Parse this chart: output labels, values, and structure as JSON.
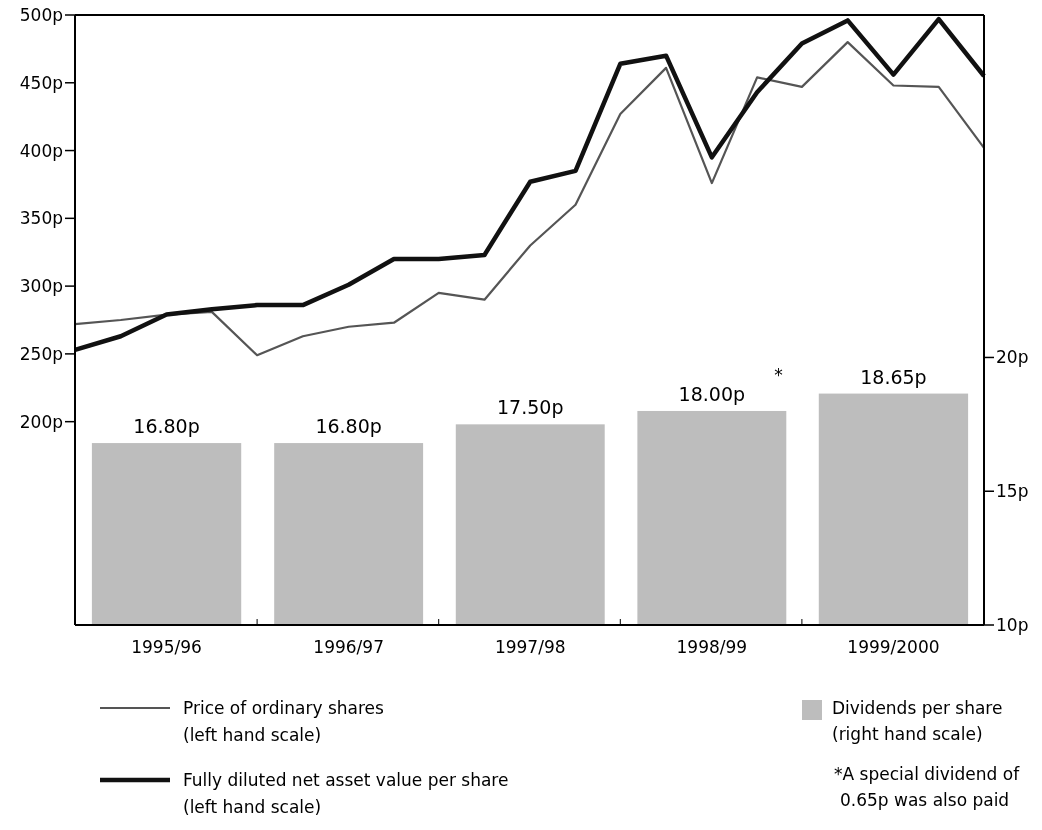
{
  "chart_data": {
    "type": "line",
    "xlim": [
      "1995-03",
      "2000-03"
    ],
    "xticks": [
      {
        "value": "1995-03",
        "label": null
      },
      {
        "value": "1995-09",
        "label": "1995/96"
      },
      {
        "value": "1996-03",
        "label": null
      },
      {
        "value": "1996-09",
        "label": "1996/97"
      },
      {
        "value": "1997-03",
        "label": null
      },
      {
        "value": "1997-09",
        "label": "1997/98"
      },
      {
        "value": "1998-03",
        "label": null
      },
      {
        "value": "1998-09",
        "label": "1998/99"
      },
      {
        "value": "1999-03",
        "label": null
      },
      {
        "value": "1999-09",
        "label": "1999/2000"
      },
      {
        "value": "2000-03",
        "label": null
      }
    ],
    "ylim": [
      50,
      500
    ],
    "yticks": [
      {
        "value": 200,
        "label": "200p"
      },
      {
        "value": 250,
        "label": "250p"
      },
      {
        "value": 300,
        "label": "300p"
      },
      {
        "value": 350,
        "label": "350p"
      },
      {
        "value": 400,
        "label": "400p"
      },
      {
        "value": 450,
        "label": "450p"
      },
      {
        "value": 500,
        "label": "500p"
      }
    ],
    "y2lim": [
      10,
      32.8
    ],
    "y2ticks": [
      {
        "value": 10,
        "label": "10p"
      },
      {
        "value": 15,
        "label": "15p"
      },
      {
        "value": 20,
        "label": "20p"
      }
    ],
    "series": [
      {
        "name": "Dividends per share (right hand scale)",
        "type": "bar",
        "axis": "y2",
        "color": "#bdbdbd",
        "x": [
          "1995-09",
          "1996-09",
          "1997-09",
          "1998-09",
          "1999-09"
        ],
        "values": [
          16.8,
          16.8,
          17.5,
          18.0,
          18.65
        ],
        "value_labels": [
          "16.80p",
          "16.80p",
          "17.50p",
          "18.00p",
          "18.65p"
        ]
      },
      {
        "name": "Price of ordinary shares (left hand scale)",
        "color": "#555555",
        "x": [
          "1995-03",
          "1995-06",
          "1995-09",
          "1995-12",
          "1996-03",
          "1996-06",
          "1996-09",
          "1996-12",
          "1997-03",
          "1997-06",
          "1997-09",
          "1997-12",
          "1998-03",
          "1998-06",
          "1998-09",
          "1998-12",
          "1999-03",
          "1999-06",
          "1999-09",
          "1999-12",
          "2000-03"
        ],
        "values": [
          272,
          275,
          279,
          281,
          249,
          263,
          270,
          273,
          295,
          290,
          330,
          360,
          427,
          461,
          376,
          454,
          447,
          480,
          448,
          447,
          402
        ]
      },
      {
        "name": "Fully diluted net asset value per share (left hand scale)",
        "color": "#111111",
        "x": [
          "1995-03",
          "1995-06",
          "1995-09",
          "1995-12",
          "1996-03",
          "1996-06",
          "1996-09",
          "1996-12",
          "1997-03",
          "1997-06",
          "1997-09",
          "1997-12",
          "1998-03",
          "1998-06",
          "1998-09",
          "1998-12",
          "1999-03",
          "1999-06",
          "1999-09",
          "1999-12",
          "2000-03"
        ],
        "values": [
          253,
          263,
          279,
          283,
          286,
          286,
          301,
          320,
          320,
          323,
          377,
          385,
          464,
          470,
          395,
          443,
          479,
          496,
          456,
          497,
          455
        ]
      }
    ],
    "annotations": [
      "*",
      "*A special dividend of 0.65p was also paid"
    ],
    "legend": "bottom"
  }
}
